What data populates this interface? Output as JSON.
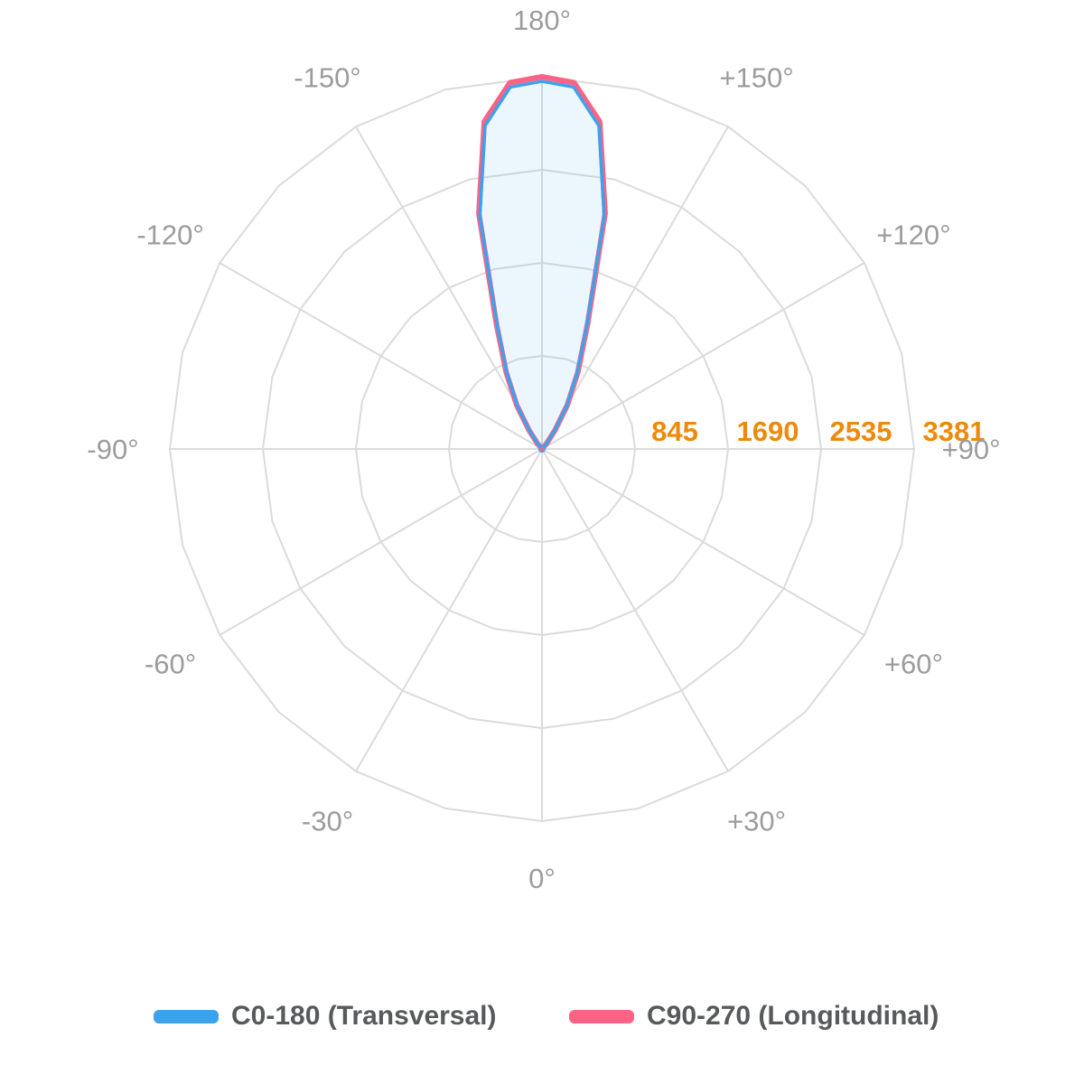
{
  "chart_data": {
    "type": "polar",
    "description": "Luminaire photometric polar intensity diagram with a single narrow beam lobe pointing toward 180 degrees",
    "angle_axis": {
      "labels": [
        {
          "text": "180°",
          "phi": 0
        },
        {
          "text": "+150°",
          "phi": 30
        },
        {
          "text": "+120°",
          "phi": 60
        },
        {
          "text": "+90°",
          "phi": 90
        },
        {
          "text": "+60°",
          "phi": 120
        },
        {
          "text": "+30°",
          "phi": 150
        },
        {
          "text": "0°",
          "phi": 180
        },
        {
          "text": "-30°",
          "phi": 210
        },
        {
          "text": "-60°",
          "phi": 240
        },
        {
          "text": "-90°",
          "phi": 270
        },
        {
          "text": "-120°",
          "phi": 300
        },
        {
          "text": "-150°",
          "phi": 330
        }
      ],
      "label_color": "#9c9c9c"
    },
    "radial_axis": {
      "tick_labels": [
        "845",
        "1690",
        "2535",
        "3381"
      ],
      "tick_values": [
        845,
        1690,
        2535,
        3381
      ],
      "max": 3381,
      "rings": 4,
      "label_color": "#ee8a0a"
    },
    "series": [
      {
        "name": "C0-180 (Transversal)",
        "color": "#3da2ec",
        "fill": "rgba(54,162,235,0.10)",
        "gamma": [
          -45,
          -40,
          -35,
          -30,
          -25,
          -20,
          -15,
          -10,
          -5,
          0,
          5,
          10,
          15,
          20,
          25,
          30,
          35,
          40,
          45
        ],
        "values": [
          0,
          60,
          195,
          445,
          750,
          1190,
          2180,
          2980,
          3300,
          3340,
          3300,
          2980,
          2180,
          1190,
          750,
          445,
          195,
          60,
          0
        ]
      },
      {
        "name": "C90-270 (Longitudinal)",
        "color": "#fb6384",
        "fill": "none",
        "gamma": [
          -45,
          -40,
          -35,
          -30,
          -25,
          -20,
          -15,
          -10,
          -5,
          0,
          5,
          10,
          15,
          20,
          25,
          30,
          35,
          40,
          45
        ],
        "values": [
          0,
          65,
          205,
          460,
          770,
          1215,
          2215,
          3020,
          3340,
          3381,
          3340,
          3020,
          2215,
          1215,
          770,
          460,
          205,
          65,
          0
        ]
      }
    ],
    "layout": {
      "center": [
        600,
        497
      ],
      "outer_radius": 412,
      "angle_label_radius": 475,
      "radial_tick_offset_x": 44,
      "radial_tick_offset_y": -20,
      "grid_color": "#dbdbdb",
      "grid_line_width": 2,
      "grid_polygon_sides": 24,
      "spoke_step_deg": 30,
      "legend_position": "bottom",
      "grid": "on"
    }
  },
  "legend": {
    "items": [
      {
        "label": "C0-180 (Transversal)",
        "color": "#3da2ec"
      },
      {
        "label": "C90-270 (Longitudinal)",
        "color": "#fb6384"
      }
    ]
  }
}
